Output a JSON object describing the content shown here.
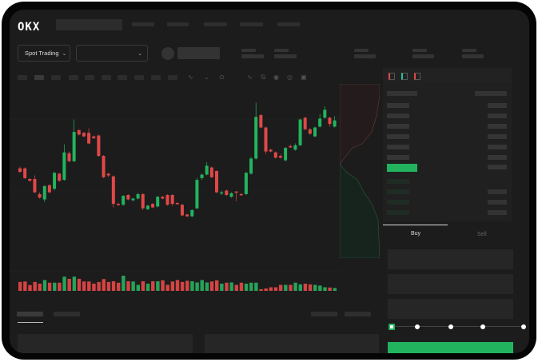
{
  "brand": {
    "logo": "OKX"
  },
  "toolbar": {
    "market_type": "Spot Trading",
    "pair_selector": ""
  },
  "trade": {
    "buy_label": "Buy",
    "sell_label": "Sell",
    "slider_percent": 0
  },
  "colors": {
    "up": "#22b35e",
    "down": "#e04848",
    "accent": "#22b35e"
  },
  "icons": [
    "chevron-down-icon",
    "indicator-icon",
    "draw-line-icon",
    "ruler-icon",
    "camera-icon",
    "settings-icon",
    "fullscreen-icon",
    "orderbook-both-icon",
    "orderbook-bids-icon",
    "orderbook-asks-icon"
  ],
  "chart_data": {
    "type": "candlestick",
    "candles": [
      [
        97,
        93,
        99,
        92
      ],
      [
        97,
        86,
        98,
        85
      ],
      [
        85,
        83,
        86,
        82
      ],
      [
        85,
        70,
        89,
        69
      ],
      [
        68,
        64,
        70,
        63
      ],
      [
        62,
        77,
        78,
        59
      ],
      [
        78,
        70,
        79,
        69
      ],
      [
        74,
        92,
        93,
        72
      ],
      [
        91,
        83,
        92,
        82
      ],
      [
        84,
        115,
        124,
        83
      ],
      [
        114,
        105,
        116,
        104
      ],
      [
        105,
        138,
        152,
        104
      ],
      [
        140,
        135,
        141,
        134
      ],
      [
        137,
        133,
        138,
        132
      ],
      [
        137,
        125,
        142,
        124
      ],
      [
        133,
        131,
        134,
        130
      ],
      [
        134,
        111,
        135,
        110
      ],
      [
        111,
        87,
        112,
        86
      ],
      [
        91,
        89,
        92,
        87
      ],
      [
        88,
        57,
        89,
        53
      ],
      [
        57,
        56,
        58,
        55
      ],
      [
        56,
        66,
        67,
        55
      ],
      [
        67,
        62,
        68,
        61
      ],
      [
        61,
        63,
        64,
        60
      ],
      [
        63,
        68,
        69,
        62
      ],
      [
        68,
        52,
        69,
        50
      ],
      [
        51,
        55,
        56,
        50
      ],
      [
        57,
        53,
        58,
        52
      ],
      [
        54,
        65,
        66,
        53
      ],
      [
        65,
        63,
        66,
        62
      ],
      [
        67,
        56,
        68,
        55
      ],
      [
        67,
        57,
        68,
        55
      ],
      [
        58,
        57,
        59,
        56
      ],
      [
        56,
        44,
        57,
        43
      ],
      [
        45,
        43,
        46,
        42
      ],
      [
        43,
        50,
        51,
        42
      ],
      [
        52,
        84,
        86,
        51
      ],
      [
        86,
        90,
        91,
        84
      ],
      [
        90,
        100,
        104,
        89
      ],
      [
        98,
        87,
        99,
        86
      ],
      [
        94,
        70,
        95,
        69
      ],
      [
        69,
        70,
        72,
        67
      ],
      [
        72,
        67,
        73,
        66
      ],
      [
        65,
        69,
        70,
        64
      ],
      [
        71,
        70,
        71,
        60
      ],
      [
        68,
        67,
        69,
        66
      ],
      [
        68,
        92,
        93,
        67
      ],
      [
        91,
        108,
        110,
        90
      ],
      [
        108,
        155,
        171,
        107
      ],
      [
        157,
        143,
        158,
        142
      ],
      [
        143,
        116,
        144,
        113
      ],
      [
        118,
        116,
        119,
        115
      ],
      [
        115,
        109,
        116,
        108
      ],
      [
        111,
        109,
        113,
        108
      ],
      [
        106,
        120,
        121,
        105
      ],
      [
        122,
        121,
        124,
        120
      ],
      [
        118,
        123,
        125,
        117
      ],
      [
        123,
        152,
        153,
        122
      ],
      [
        154,
        141,
        155,
        140
      ],
      [
        141,
        136,
        142,
        135
      ],
      [
        133,
        143,
        144,
        132
      ],
      [
        144,
        153,
        158,
        143
      ],
      [
        154,
        163,
        167,
        153
      ],
      [
        154,
        147,
        155,
        144
      ],
      [
        144,
        151,
        156,
        143
      ]
    ],
    "volumes": [
      37,
      39,
      24,
      37,
      30,
      45,
      34,
      34,
      34,
      59,
      50,
      59,
      50,
      39,
      39,
      30,
      37,
      49,
      37,
      40,
      34,
      63,
      40,
      39,
      25,
      40,
      30,
      40,
      40,
      44,
      25,
      39,
      45,
      37,
      42,
      40,
      35,
      45,
      35,
      39,
      44,
      30,
      34,
      35,
      25,
      34,
      30,
      34,
      34,
      7,
      10,
      15,
      15,
      25,
      25,
      25,
      34,
      27,
      30,
      27,
      25,
      22,
      15,
      14,
      12
    ],
    "grid": true
  }
}
